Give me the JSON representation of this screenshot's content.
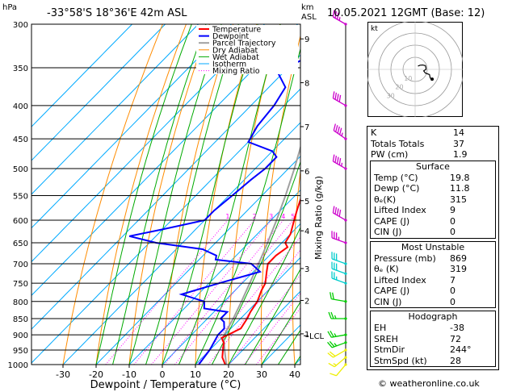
{
  "header": {
    "hpa": "hPa",
    "location": "-33°58'S  18°36'E  42m  ASL",
    "km": "km",
    "asl": "ASL",
    "date": "10.05.2021  12GMT  (Base: 12)"
  },
  "credit": "© weatheronline.co.uk",
  "legend": [
    "Temperature",
    "Dewpoint",
    "Parcel Trajectory",
    "Dry Adiabat",
    "Wet Adiabat",
    "Isotherm",
    "Mixing Ratio"
  ],
  "colors": {
    "temperature": "#ff0000",
    "dewpoint": "#0000ff",
    "parcel": "#a0a0a0",
    "dry_adiabat": "#ff8c00",
    "wet_adiabat": "#00aa00",
    "isotherm": "#00aaff",
    "mixing_ratio": "#ff00ff",
    "wind": "#cc00cc",
    "wind_mid": "#00cccc",
    "wind_low": "#00cc00",
    "wind_surface": "#eeee00"
  },
  "chart_data": {
    "type": "skew-t",
    "xlabel": "Dewpoint / Temperature (°C)",
    "ylabel_left": "hPa",
    "ylabel_right": "Mixing Ratio (g/kg)",
    "x_ticks": [
      -30,
      -20,
      -10,
      0,
      10,
      20,
      30,
      40
    ],
    "pressure_levels": [
      300,
      350,
      400,
      450,
      500,
      550,
      600,
      650,
      700,
      750,
      800,
      850,
      900,
      950,
      1000
    ],
    "altitude_km": [
      {
        "km": "9",
        "p": 316
      },
      {
        "km": "8",
        "p": 369
      },
      {
        "km": "7",
        "p": 431
      },
      {
        "km": "6",
        "p": 504
      },
      {
        "km": "5",
        "p": 560
      },
      {
        "km": "4",
        "p": 623
      },
      {
        "km": "3",
        "p": 712
      },
      {
        "km": "2",
        "p": 797
      },
      {
        "km": "1",
        "p": 897
      }
    ],
    "lcl_label": "LCL",
    "lcl_p": 903,
    "mixing_ratio_labels": [
      "1",
      "2",
      "3",
      "4",
      "5",
      "8",
      "10",
      "15",
      "20",
      "25"
    ],
    "temperature": [
      [
        1005,
        19.8
      ],
      [
        1000,
        19
      ],
      [
        975,
        16
      ],
      [
        950,
        14
      ],
      [
        925,
        12
      ],
      [
        910,
        10
      ],
      [
        900,
        11
      ],
      [
        880,
        13
      ],
      [
        850,
        12
      ],
      [
        830,
        11
      ],
      [
        800,
        10
      ],
      [
        770,
        8
      ],
      [
        750,
        7
      ],
      [
        720,
        4
      ],
      [
        700,
        2
      ],
      [
        680,
        2
      ],
      [
        660,
        3
      ],
      [
        650,
        1
      ],
      [
        630,
        0
      ],
      [
        600,
        -3
      ],
      [
        580,
        -5
      ],
      [
        550,
        -8
      ],
      [
        520,
        -12
      ],
      [
        500,
        -15
      ],
      [
        470,
        -20
      ],
      [
        450,
        -22
      ],
      [
        430,
        -25
      ],
      [
        400,
        -30
      ],
      [
        375,
        -34
      ],
      [
        350,
        -38
      ],
      [
        325,
        -43
      ],
      [
        300,
        -48
      ]
    ],
    "dewpoint": [
      [
        1005,
        11.8
      ],
      [
        1000,
        11
      ],
      [
        950,
        10
      ],
      [
        925,
        9
      ],
      [
        900,
        8
      ],
      [
        880,
        8
      ],
      [
        870,
        7
      ],
      [
        860,
        6
      ],
      [
        850,
        4
      ],
      [
        830,
        4
      ],
      [
        820,
        -4
      ],
      [
        800,
        -6
      ],
      [
        780,
        -15
      ],
      [
        750,
        -7
      ],
      [
        720,
        2
      ],
      [
        700,
        -3
      ],
      [
        690,
        -15
      ],
      [
        680,
        -16
      ],
      [
        665,
        -22
      ],
      [
        650,
        -38
      ],
      [
        635,
        -48
      ],
      [
        620,
        -40
      ],
      [
        600,
        -30
      ],
      [
        580,
        -30
      ],
      [
        550,
        -29
      ],
      [
        520,
        -28
      ],
      [
        500,
        -27
      ],
      [
        480,
        -27
      ],
      [
        470,
        -30
      ],
      [
        455,
        -40
      ],
      [
        430,
        -42
      ],
      [
        400,
        -43
      ],
      [
        375,
        -45
      ],
      [
        355,
        -52
      ],
      [
        340,
        -48
      ],
      [
        320,
        -52
      ],
      [
        300,
        -55
      ]
    ],
    "parcel": [
      [
        1005,
        19.8
      ],
      [
        950,
        14.5
      ],
      [
        903,
        10
      ],
      [
        850,
        7.8
      ],
      [
        800,
        5.2
      ],
      [
        750,
        2.3
      ],
      [
        700,
        -0.8
      ],
      [
        650,
        -4.3
      ],
      [
        600,
        -8.3
      ],
      [
        550,
        -12.9
      ],
      [
        500,
        -18.2
      ],
      [
        450,
        -24.4
      ],
      [
        400,
        -31.5
      ],
      [
        350,
        -39.8
      ],
      [
        300,
        -49.5
      ]
    ],
    "wind_barbs": [
      {
        "p": 1000,
        "dir": 220,
        "spd": 10,
        "color": "surface"
      },
      {
        "p": 975,
        "dir": 230,
        "spd": 15,
        "color": "surface"
      },
      {
        "p": 950,
        "dir": 240,
        "spd": 20,
        "color": "surface"
      },
      {
        "p": 925,
        "dir": 250,
        "spd": 25,
        "color": "low"
      },
      {
        "p": 900,
        "dir": 260,
        "spd": 25,
        "color": "low"
      },
      {
        "p": 850,
        "dir": 270,
        "spd": 25,
        "color": "low"
      },
      {
        "p": 800,
        "dir": 280,
        "spd": 20,
        "color": "low"
      },
      {
        "p": 750,
        "dir": 290,
        "spd": 25,
        "color": "mid"
      },
      {
        "p": 725,
        "dir": 290,
        "spd": 30,
        "color": "mid"
      },
      {
        "p": 700,
        "dir": 290,
        "spd": 30,
        "color": "mid"
      },
      {
        "p": 650,
        "dir": 290,
        "spd": 35,
        "color": "upper"
      },
      {
        "p": 600,
        "dir": 300,
        "spd": 40,
        "color": "upper"
      },
      {
        "p": 500,
        "dir": 300,
        "spd": 45,
        "color": "upper"
      },
      {
        "p": 450,
        "dir": 305,
        "spd": 45,
        "color": "upper"
      },
      {
        "p": 400,
        "dir": 300,
        "spd": 40,
        "color": "upper"
      },
      {
        "p": 300,
        "dir": 300,
        "spd": 35,
        "color": "upper"
      }
    ],
    "hodograph": {
      "label": "kt",
      "ring_labels": [
        "10",
        "20",
        "30"
      ]
    }
  },
  "indices": [
    {
      "label": "K",
      "value": "14"
    },
    {
      "label": "Totals Totals",
      "value": "37"
    },
    {
      "label": "PW (cm)",
      "value": "1.9"
    }
  ],
  "surface": {
    "title": "Surface",
    "rows": [
      {
        "label": "Temp (°C)",
        "value": "19.8"
      },
      {
        "label": "Dewp (°C)",
        "value": "11.8"
      },
      {
        "label": "θₑ(K)",
        "value": "315"
      },
      {
        "label": "Lifted Index",
        "value": "9"
      },
      {
        "label": "CAPE (J)",
        "value": "0"
      },
      {
        "label": "CIN (J)",
        "value": "0"
      }
    ]
  },
  "most_unstable": {
    "title": "Most Unstable",
    "rows": [
      {
        "label": "Pressure (mb)",
        "value": "869"
      },
      {
        "label": "θₑ (K)",
        "value": "319"
      },
      {
        "label": "Lifted Index",
        "value": "7"
      },
      {
        "label": "CAPE (J)",
        "value": "0"
      },
      {
        "label": "CIN (J)",
        "value": "0"
      }
    ]
  },
  "hodograph_table": {
    "title": "Hodograph",
    "rows": [
      {
        "label": "EH",
        "value": "-38"
      },
      {
        "label": "SREH",
        "value": "72"
      },
      {
        "label": "StmDir",
        "value": "244°"
      },
      {
        "label": "StmSpd (kt)",
        "value": "28"
      }
    ]
  }
}
